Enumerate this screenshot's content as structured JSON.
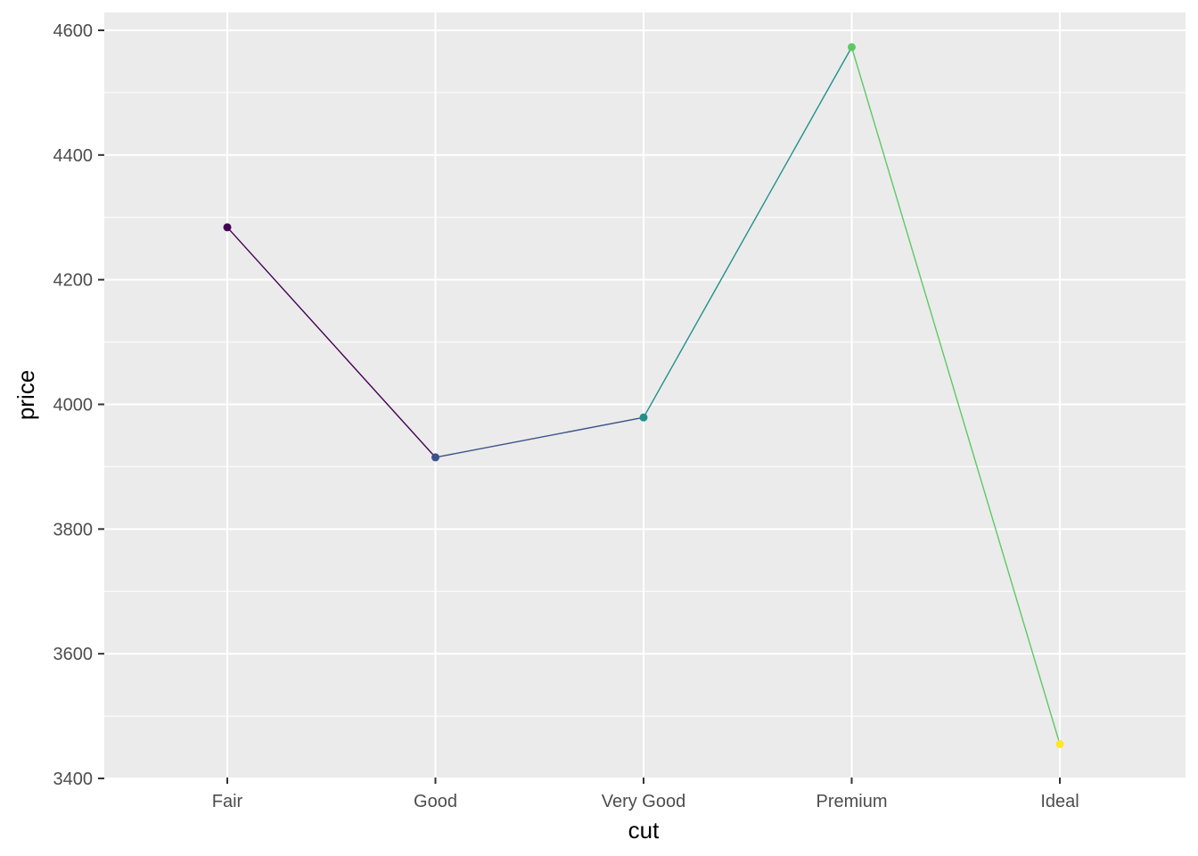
{
  "chart_data": {
    "type": "line",
    "title": "",
    "xlabel": "cut",
    "ylabel": "price",
    "categories": [
      "Fair",
      "Good",
      "Very Good",
      "Premium",
      "Ideal"
    ],
    "values": [
      4284,
      3915,
      3979,
      4573,
      3455
    ],
    "point_colors": [
      "#440154",
      "#3b528b",
      "#21908c",
      "#5ec962",
      "#fde725"
    ],
    "ylim": [
      3400,
      4600
    ],
    "yticks": [
      3400,
      3600,
      3800,
      4000,
      4200,
      4400,
      4600
    ],
    "grid": true,
    "legend": "none",
    "panel_background": "#ebebeb",
    "grid_color": "#ffffff"
  }
}
